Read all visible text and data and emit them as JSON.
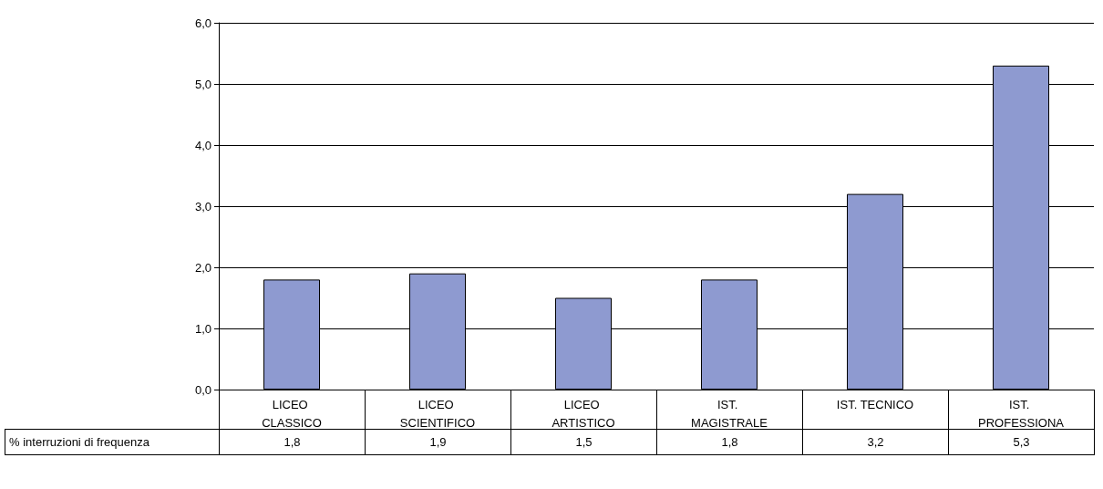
{
  "chart_data": {
    "type": "bar",
    "categories": [
      "LICEO CLASSICO",
      "LICEO SCIENTIFICO",
      "LICEO ARTISTICO",
      "IST. MAGISTRALE",
      "IST. TECNICO",
      "IST. PROFESSIONA"
    ],
    "series": [
      {
        "name": "% interruzioni di frequenza",
        "color": "#8e9ad0",
        "values": [
          1.8,
          1.9,
          1.5,
          1.8,
          3.2,
          5.3
        ],
        "value_labels": [
          "1,8",
          "1,9",
          "1,5",
          "1,8",
          "3,2",
          "5,3"
        ]
      }
    ],
    "ylim": [
      0,
      6
    ],
    "yticks": [
      {
        "value": 0,
        "label": "0,0"
      },
      {
        "value": 1,
        "label": "1,0"
      },
      {
        "value": 2,
        "label": "2,0"
      },
      {
        "value": 3,
        "label": "3,0"
      },
      {
        "value": 4,
        "label": "4,0"
      },
      {
        "value": 5,
        "label": "5,0"
      },
      {
        "value": 6,
        "label": "6,0"
      }
    ],
    "grid": "y",
    "legend": false
  }
}
